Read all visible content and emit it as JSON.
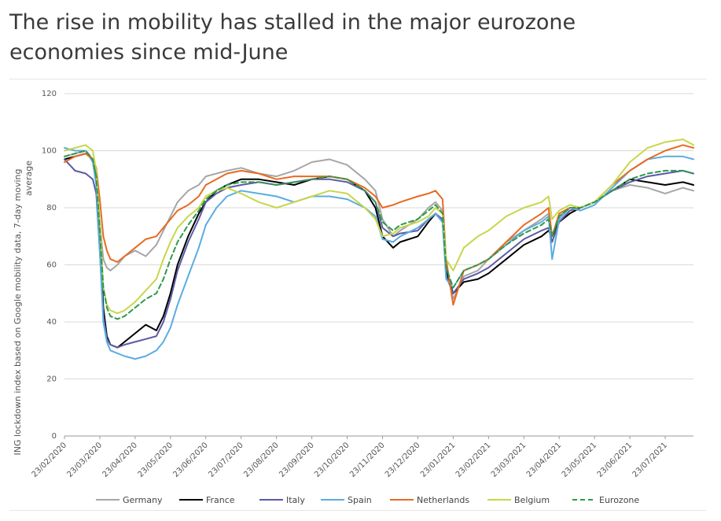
{
  "header": {
    "title": "The rise in mobility has stalled in the major eurozone economies since mid-June"
  },
  "chart_data": {
    "type": "line",
    "title": "The rise in mobility has stalled in the major eurozone economies since mid-June",
    "ylabel": "ING lockdown index based on Google mobility data, 7-day moving average",
    "ylabel_lines": [
      "ING lockdown index based on Google mobility data, 7-day moving",
      "average"
    ],
    "xlabel": "",
    "ylim": [
      0,
      120
    ],
    "yticks": [
      0,
      20,
      40,
      60,
      80,
      100,
      120
    ],
    "xlim": [
      0,
      17.8
    ],
    "xtick_labels": [
      "23/02/2020",
      "23/03/2020",
      "23/04/2020",
      "23/05/2020",
      "23/06/2020",
      "23/07/2020",
      "23/08/2020",
      "23/09/2020",
      "23/10/2020",
      "23/11/2020",
      "23/12/2020",
      "23/01/2021",
      "23/02/2021",
      "23/03/2021",
      "23/04/2021",
      "23/05/2021",
      "23/06/2021",
      "23/07/2021"
    ],
    "x_units": "months since 23/02/2020",
    "grid": "horizontal",
    "legend_position": "bottom",
    "x": [
      0,
      0.3,
      0.6,
      0.8,
      0.9,
      1.0,
      1.1,
      1.2,
      1.3,
      1.5,
      1.7,
      2.0,
      2.3,
      2.6,
      2.8,
      3.0,
      3.2,
      3.5,
      3.8,
      4.0,
      4.3,
      4.6,
      5.0,
      5.5,
      6.0,
      6.5,
      7.0,
      7.5,
      8.0,
      8.5,
      8.8,
      9.0,
      9.3,
      9.5,
      10.0,
      10.3,
      10.5,
      10.7,
      10.8,
      11.0,
      11.3,
      11.7,
      12.0,
      12.5,
      13.0,
      13.5,
      13.7,
      13.8,
      14.0,
      14.3,
      14.6,
      15.0,
      15.5,
      16.0,
      16.5,
      17.0,
      17.5,
      17.8
    ],
    "series": [
      {
        "name": "Germany",
        "color": "#a6a6a6",
        "dash": "solid",
        "values": [
          98,
          99,
          100,
          97,
          90,
          75,
          62,
          59,
          58,
          60,
          63,
          65,
          63,
          67,
          72,
          77,
          82,
          86,
          88,
          91,
          92,
          93,
          94,
          92,
          91,
          93,
          96,
          97,
          95,
          90,
          86,
          76,
          70,
          72,
          76,
          80,
          82,
          79,
          60,
          48,
          56,
          58,
          62,
          68,
          72,
          76,
          78,
          70,
          77,
          80,
          80,
          82,
          86,
          88,
          87,
          85,
          87,
          86
        ]
      },
      {
        "name": "France",
        "color": "#000000",
        "dash": "solid",
        "values": [
          97,
          98,
          99,
          97,
          92,
          72,
          45,
          35,
          32,
          31,
          33,
          36,
          39,
          37,
          42,
          50,
          60,
          70,
          78,
          82,
          86,
          88,
          90,
          90,
          89,
          88,
          90,
          91,
          90,
          86,
          80,
          70,
          66,
          68,
          70,
          75,
          78,
          75,
          58,
          50,
          54,
          55,
          57,
          62,
          67,
          70,
          72,
          70,
          75,
          78,
          80,
          82,
          86,
          90,
          89,
          88,
          89,
          88
        ]
      },
      {
        "name": "Italy",
        "color": "#5b5aa5",
        "dash": "solid",
        "values": [
          97,
          93,
          92,
          90,
          85,
          65,
          42,
          34,
          32,
          31,
          32,
          33,
          34,
          35,
          40,
          48,
          58,
          68,
          76,
          82,
          85,
          87,
          88,
          89,
          88,
          89,
          90,
          90,
          89,
          86,
          82,
          73,
          70,
          71,
          72,
          76,
          78,
          76,
          56,
          50,
          55,
          57,
          59,
          64,
          69,
          72,
          73,
          68,
          75,
          79,
          80,
          82,
          86,
          89,
          91,
          92,
          93,
          92
        ]
      },
      {
        "name": "Spain",
        "color": "#5aade0",
        "dash": "solid",
        "values": [
          101,
          100,
          100,
          96,
          88,
          65,
          40,
          33,
          30,
          29,
          28,
          27,
          28,
          30,
          33,
          38,
          46,
          56,
          66,
          74,
          80,
          84,
          86,
          85,
          84,
          82,
          84,
          84,
          83,
          80,
          77,
          69,
          68,
          70,
          73,
          76,
          78,
          75,
          55,
          52,
          58,
          60,
          62,
          67,
          72,
          75,
          77,
          62,
          76,
          80,
          79,
          81,
          87,
          93,
          97,
          98,
          98,
          97
        ]
      },
      {
        "name": "Netherlands",
        "color": "#e86a21",
        "dash": "solid",
        "values": [
          96,
          98,
          99,
          97,
          94,
          83,
          70,
          65,
          62,
          61,
          63,
          66,
          69,
          70,
          73,
          76,
          79,
          81,
          84,
          88,
          90,
          92,
          93,
          92,
          90,
          91,
          91,
          91,
          90,
          87,
          84,
          80,
          81,
          82,
          84,
          85,
          86,
          83,
          62,
          46,
          58,
          60,
          62,
          68,
          74,
          78,
          80,
          70,
          78,
          80,
          80,
          82,
          88,
          93,
          97,
          100,
          102,
          101
        ]
      },
      {
        "name": "Belgium",
        "color": "#c8d64a",
        "dash": "solid",
        "values": [
          100,
          101,
          102,
          100,
          93,
          75,
          52,
          46,
          44,
          43,
          44,
          47,
          51,
          55,
          62,
          68,
          73,
          77,
          80,
          84,
          86,
          87,
          85,
          82,
          80,
          82,
          84,
          86,
          85,
          80,
          76,
          70,
          71,
          73,
          75,
          77,
          80,
          78,
          62,
          58,
          66,
          70,
          72,
          77,
          80,
          82,
          84,
          76,
          79,
          81,
          80,
          82,
          88,
          96,
          101,
          103,
          104,
          102
        ]
      },
      {
        "name": "Eurozone",
        "color": "#2e9a4a",
        "dash": "dashed",
        "values": [
          98,
          99,
          100,
          97,
          91,
          72,
          52,
          45,
          42,
          41,
          42,
          45,
          48,
          50,
          55,
          62,
          68,
          74,
          79,
          83,
          86,
          88,
          89,
          89,
          88,
          89,
          90,
          91,
          90,
          86,
          82,
          75,
          72,
          74,
          76,
          79,
          81,
          78,
          59,
          52,
          58,
          60,
          62,
          67,
          71,
          74,
          76,
          70,
          77,
          80,
          80,
          82,
          86,
          90,
          92,
          93,
          93,
          92
        ]
      }
    ]
  }
}
